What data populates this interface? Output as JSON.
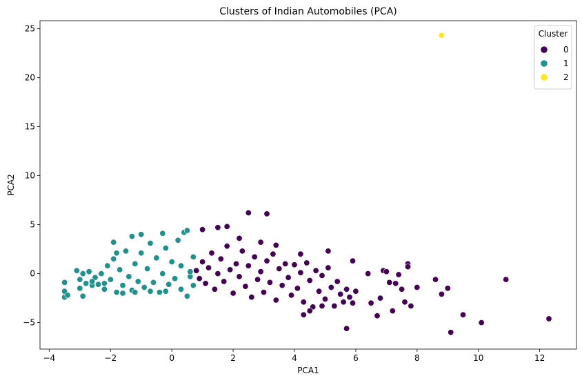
{
  "chart_data": {
    "type": "scatter",
    "title": "Clusters of Indian Automobiles (PCA)",
    "xlabel": "PCA1",
    "ylabel": "PCA2",
    "xlim": [
      -4.3,
      13.2
    ],
    "ylim": [
      -7.7,
      25.8
    ],
    "xticks": [
      -4,
      -2,
      0,
      2,
      4,
      6,
      8,
      10,
      12
    ],
    "xtick_labels": [
      "−4",
      "−2",
      "0",
      "2",
      "4",
      "6",
      "8",
      "10",
      "12"
    ],
    "yticks": [
      -5,
      0,
      5,
      10,
      15,
      20,
      25
    ],
    "ytick_labels": [
      "−5",
      "0",
      "5",
      "10",
      "15",
      "20",
      "25"
    ],
    "grid": false,
    "legend": {
      "title": "Cluster",
      "placement": "top-right"
    },
    "series": [
      {
        "name": "0",
        "color": "#440154",
        "points": [
          [
            0.8,
            0.3
          ],
          [
            0.9,
            -0.5
          ],
          [
            1.0,
            1.2
          ],
          [
            1.1,
            -1.0
          ],
          [
            1.2,
            0.6
          ],
          [
            1.3,
            2.1
          ],
          [
            1.4,
            -1.6
          ],
          [
            1.5,
            0.0
          ],
          [
            1.6,
            1.5
          ],
          [
            1.7,
            -0.8
          ],
          [
            1.8,
            2.8
          ],
          [
            1.9,
            0.4
          ],
          [
            2.0,
            -2.0
          ],
          [
            2.1,
            1.0
          ],
          [
            2.2,
            -0.3
          ],
          [
            2.3,
            2.3
          ],
          [
            2.4,
            -1.3
          ],
          [
            2.5,
            0.8
          ],
          [
            2.6,
            -2.4
          ],
          [
            2.7,
            1.7
          ],
          [
            2.8,
            -0.6
          ],
          [
            2.9,
            0.2
          ],
          [
            3.0,
            -1.9
          ],
          [
            3.1,
            1.3
          ],
          [
            3.2,
            -0.9
          ],
          [
            3.3,
            2.0
          ],
          [
            3.4,
            -2.7
          ],
          [
            3.5,
            0.5
          ],
          [
            3.6,
            -1.2
          ],
          [
            3.7,
            1.0
          ],
          [
            3.8,
            -0.4
          ],
          [
            3.9,
            -2.2
          ],
          [
            4.0,
            0.9
          ],
          [
            4.1,
            -1.5
          ],
          [
            4.2,
            0.1
          ],
          [
            4.3,
            -2.9
          ],
          [
            4.4,
            1.1
          ],
          [
            4.5,
            -0.7
          ],
          [
            4.6,
            -3.4
          ],
          [
            4.7,
            0.3
          ],
          [
            4.8,
            -1.8
          ],
          [
            4.9,
            -0.2
          ],
          [
            5.0,
            -2.6
          ],
          [
            5.1,
            0.6
          ],
          [
            5.2,
            -1.4
          ],
          [
            5.3,
            -3.3
          ],
          [
            5.4,
            -0.8
          ],
          [
            5.5,
            -2.1
          ],
          [
            5.6,
            -2.9
          ],
          [
            5.7,
            -1.6
          ],
          [
            5.8,
            -2.4
          ],
          [
            5.9,
            -3.0
          ],
          [
            6.0,
            -1.8
          ],
          [
            1.5,
            4.7
          ],
          [
            1.8,
            4.8
          ],
          [
            2.5,
            6.2
          ],
          [
            3.1,
            6.1
          ],
          [
            1.0,
            4.5
          ],
          [
            2.2,
            3.6
          ],
          [
            2.9,
            3.2
          ],
          [
            3.4,
            2.9
          ],
          [
            4.2,
            2.0
          ],
          [
            5.1,
            2.3
          ],
          [
            4.3,
            -4.2
          ],
          [
            4.5,
            -3.8
          ],
          [
            4.9,
            -3.3
          ],
          [
            5.7,
            -5.6
          ],
          [
            5.9,
            1.3
          ],
          [
            6.4,
            0.0
          ],
          [
            6.5,
            -3.0
          ],
          [
            6.7,
            -4.3
          ],
          [
            6.8,
            -2.5
          ],
          [
            6.9,
            0.3
          ],
          [
            7.0,
            0.2
          ],
          [
            7.1,
            -0.9
          ],
          [
            7.2,
            -3.8
          ],
          [
            7.3,
            -1.0
          ],
          [
            7.4,
            -0.1
          ],
          [
            7.5,
            -1.6
          ],
          [
            7.6,
            -2.9
          ],
          [
            7.7,
            1.0
          ],
          [
            7.7,
            0.7
          ],
          [
            7.8,
            -3.3
          ],
          [
            8.0,
            -1.4
          ],
          [
            8.6,
            -0.6
          ],
          [
            8.8,
            -2.1
          ],
          [
            9.0,
            -1.5
          ],
          [
            9.1,
            -6.0
          ],
          [
            9.5,
            -4.2
          ],
          [
            10.1,
            -5.0
          ],
          [
            10.9,
            -0.6
          ],
          [
            12.3,
            -4.6
          ]
        ]
      },
      {
        "name": "1",
        "color": "#21918c",
        "points": [
          [
            -3.5,
            -0.9
          ],
          [
            -3.5,
            -1.8
          ],
          [
            -3.5,
            -2.4
          ],
          [
            -3.4,
            -2.2
          ],
          [
            -3.1,
            0.3
          ],
          [
            -3.0,
            -0.6
          ],
          [
            -3.0,
            -1.5
          ],
          [
            -2.9,
            -2.3
          ],
          [
            -2.9,
            0.0
          ],
          [
            -2.8,
            -1.0
          ],
          [
            -2.7,
            0.2
          ],
          [
            -2.6,
            -1.2
          ],
          [
            -2.5,
            -0.4
          ],
          [
            -2.4,
            -1.1
          ],
          [
            -2.3,
            0.0
          ],
          [
            -2.2,
            -1.6
          ],
          [
            -2.1,
            0.8
          ],
          [
            -2.0,
            -0.6
          ],
          [
            -1.9,
            3.2
          ],
          [
            -1.9,
            1.5
          ],
          [
            -1.8,
            -1.9
          ],
          [
            -1.7,
            0.4
          ],
          [
            -1.6,
            -1.2
          ],
          [
            -1.5,
            2.3
          ],
          [
            -1.4,
            -0.3
          ],
          [
            -1.3,
            3.8
          ],
          [
            -1.3,
            -1.7
          ],
          [
            -1.2,
            1.0
          ],
          [
            -1.1,
            -0.8
          ],
          [
            -1.0,
            4.0
          ],
          [
            -1.0,
            2.1
          ],
          [
            -0.9,
            -1.4
          ],
          [
            -0.8,
            0.5
          ],
          [
            -0.7,
            3.1
          ],
          [
            -0.6,
            -0.9
          ],
          [
            -0.5,
            1.6
          ],
          [
            -0.4,
            -1.9
          ],
          [
            -0.3,
            4.1
          ],
          [
            -0.3,
            0.0
          ],
          [
            -0.2,
            2.6
          ],
          [
            -0.1,
            -1.1
          ],
          [
            0.0,
            1.2
          ],
          [
            0.1,
            -0.5
          ],
          [
            0.2,
            3.4
          ],
          [
            0.3,
            -1.6
          ],
          [
            0.3,
            0.8
          ],
          [
            0.4,
            4.2
          ],
          [
            0.5,
            4.4
          ],
          [
            0.5,
            -2.3
          ],
          [
            0.6,
            -0.3
          ],
          [
            0.7,
            1.7
          ],
          [
            0.7,
            -1.2
          ],
          [
            0.6,
            0.2
          ],
          [
            -0.2,
            -1.8
          ],
          [
            -0.7,
            -1.8
          ],
          [
            -1.2,
            -1.9
          ],
          [
            -1.6,
            -2.0
          ],
          [
            -2.2,
            -1.0
          ],
          [
            -2.6,
            -0.8
          ],
          [
            -1.8,
            2.1
          ]
        ]
      },
      {
        "name": "2",
        "color": "#fde725",
        "points": [
          [
            8.8,
            24.3
          ]
        ]
      }
    ]
  }
}
